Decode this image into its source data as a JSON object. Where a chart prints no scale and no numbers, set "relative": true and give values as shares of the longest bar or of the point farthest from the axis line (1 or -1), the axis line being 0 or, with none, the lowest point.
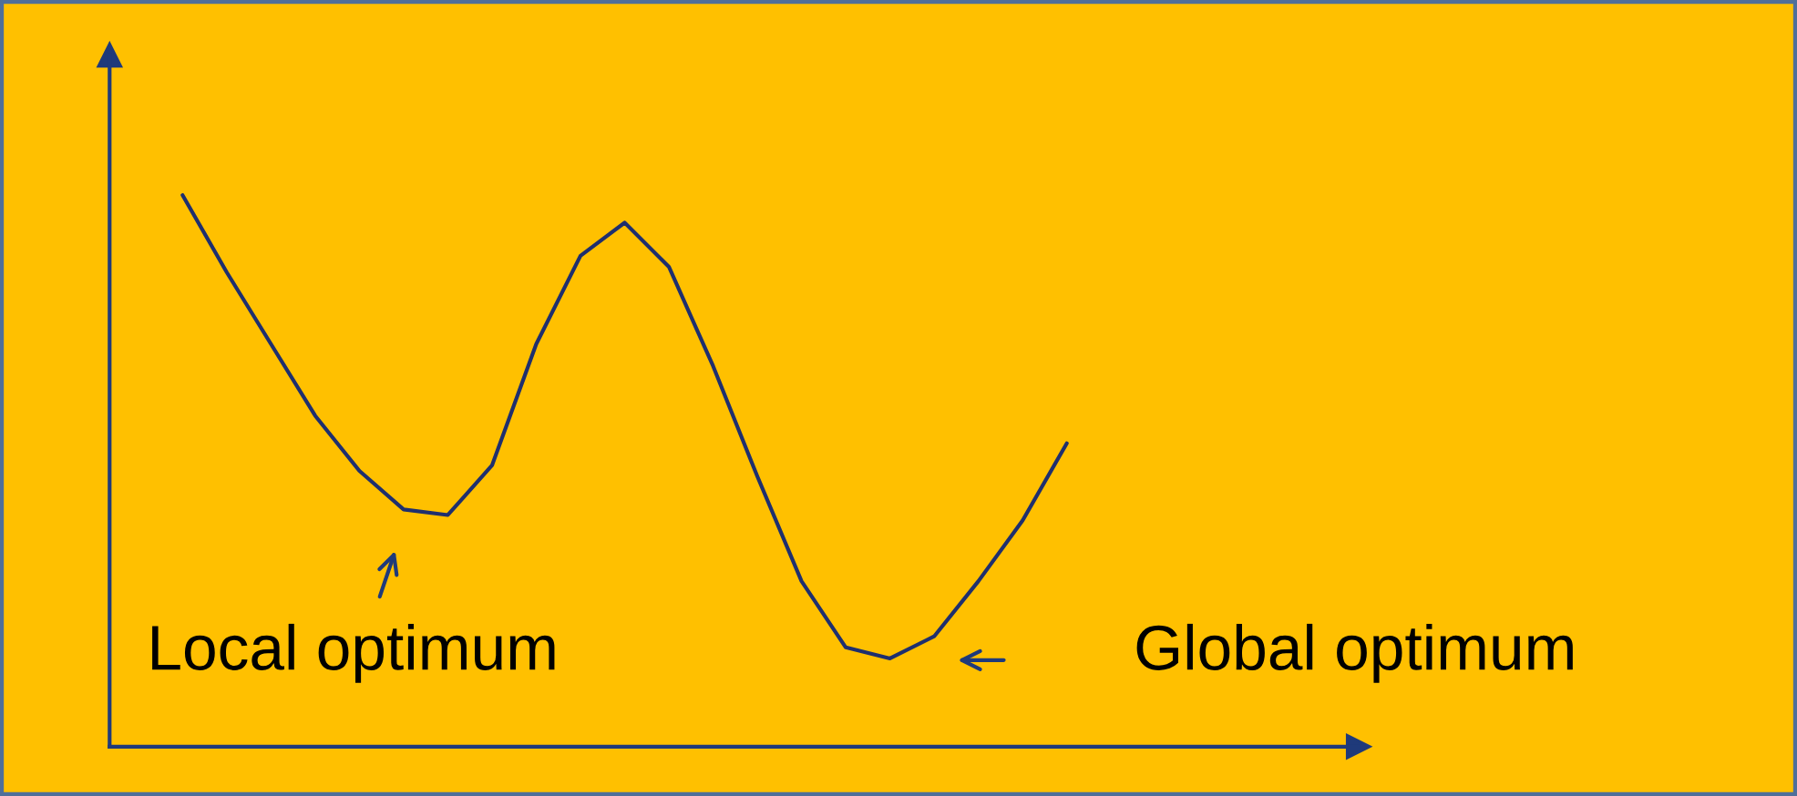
{
  "chart_data": {
    "type": "line",
    "relative": true,
    "categories": [
      null,
      null,
      null,
      null,
      null,
      null,
      null,
      null,
      null,
      null,
      null,
      null,
      null,
      null,
      null,
      null,
      null,
      null,
      null,
      null,
      null
    ],
    "series": [
      {
        "color": "#1f2f6e",
        "values": [
          1.0,
          0.86,
          0.73,
          0.6,
          0.5,
          0.43,
          0.42,
          0.51,
          0.73,
          0.89,
          0.95,
          0.87,
          0.69,
          0.49,
          0.3,
          0.18,
          0.16,
          0.2,
          0.3,
          0.41,
          0.55
        ]
      }
    ],
    "annotations": [
      "Local optimum",
      "Global optimum"
    ]
  }
}
